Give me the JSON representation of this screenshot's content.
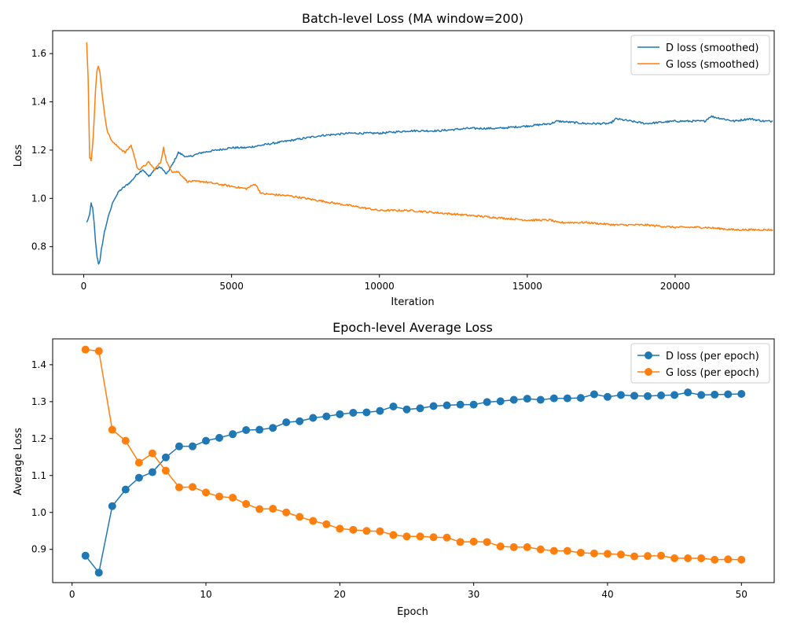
{
  "colors": {
    "d": "#1f77b4",
    "g": "#ff7f0e",
    "frame": "#000000",
    "legend_edge": "#cccccc"
  },
  "chart_data": [
    {
      "type": "line",
      "title": "Batch-level Loss (MA window=200)",
      "xlabel": "Iteration",
      "ylabel": "Loss",
      "xlim": [
        -1050,
        23350
      ],
      "ylim": [
        0.685,
        1.695
      ],
      "xticks": [
        0,
        5000,
        10000,
        15000,
        20000
      ],
      "xtick_labels": [
        "0",
        "5000",
        "10000",
        "15000",
        "20000"
      ],
      "yticks": [
        0.8,
        1.0,
        1.2,
        1.4,
        1.6
      ],
      "ytick_labels": [
        "0.8",
        "1.0",
        "1.2",
        "1.4",
        "1.6"
      ],
      "legend_position": "upper right",
      "grid": false,
      "series": [
        {
          "name": "D loss (smoothed)",
          "color_key": "d",
          "noise": 0.004,
          "x": [
            100,
            200,
            250,
            300,
            350,
            400,
            450,
            500,
            550,
            600,
            700,
            800,
            900,
            1000,
            1100,
            1200,
            1400,
            1600,
            1800,
            2000,
            2200,
            2400,
            2600,
            2800,
            3000,
            3200,
            3500,
            4000,
            4500,
            5000,
            5500,
            6000,
            7000,
            8000,
            9000,
            10000,
            11000,
            12000,
            13000,
            14000,
            15000,
            15800,
            16000,
            17000,
            17800,
            18000,
            19000,
            20000,
            21000,
            21200,
            22000,
            22500,
            23000,
            23300
          ],
          "y": [
            0.9,
            0.93,
            0.98,
            0.96,
            0.9,
            0.82,
            0.76,
            0.73,
            0.74,
            0.79,
            0.86,
            0.91,
            0.95,
            0.99,
            1.01,
            1.03,
            1.05,
            1.07,
            1.1,
            1.12,
            1.09,
            1.12,
            1.13,
            1.1,
            1.14,
            1.19,
            1.17,
            1.19,
            1.2,
            1.21,
            1.21,
            1.22,
            1.24,
            1.26,
            1.27,
            1.27,
            1.28,
            1.28,
            1.29,
            1.29,
            1.3,
            1.31,
            1.32,
            1.31,
            1.31,
            1.33,
            1.31,
            1.32,
            1.32,
            1.34,
            1.32,
            1.33,
            1.32,
            1.32
          ]
        },
        {
          "name": "G loss (smoothed)",
          "color_key": "g",
          "noise": 0.004,
          "x": [
            100,
            150,
            200,
            250,
            300,
            350,
            400,
            450,
            500,
            550,
            600,
            700,
            800,
            900,
            1000,
            1100,
            1200,
            1400,
            1600,
            1700,
            1800,
            1900,
            2000,
            2200,
            2400,
            2600,
            2700,
            2800,
            3000,
            3200,
            3500,
            4000,
            4500,
            5000,
            5500,
            5800,
            6000,
            7000,
            7500,
            8000,
            9000,
            10000,
            11000,
            12000,
            13000,
            14000,
            15000,
            15800,
            16000,
            17000,
            18000,
            19000,
            20000,
            21000,
            22000,
            22500,
            23300
          ],
          "y": [
            1.65,
            1.5,
            1.17,
            1.16,
            1.22,
            1.32,
            1.45,
            1.53,
            1.55,
            1.52,
            1.46,
            1.35,
            1.28,
            1.25,
            1.23,
            1.22,
            1.21,
            1.19,
            1.22,
            1.18,
            1.13,
            1.12,
            1.13,
            1.15,
            1.12,
            1.15,
            1.21,
            1.15,
            1.11,
            1.11,
            1.07,
            1.07,
            1.06,
            1.05,
            1.04,
            1.06,
            1.02,
            1.01,
            1.0,
            0.99,
            0.97,
            0.95,
            0.95,
            0.94,
            0.93,
            0.92,
            0.91,
            0.91,
            0.9,
            0.9,
            0.89,
            0.89,
            0.88,
            0.88,
            0.87,
            0.87,
            0.87
          ]
        }
      ]
    },
    {
      "type": "line",
      "title": "Epoch-level Average Loss",
      "xlabel": "Epoch",
      "ylabel": "Average Loss",
      "xlim": [
        -1.45,
        52.45
      ],
      "ylim": [
        0.81,
        1.47
      ],
      "xticks": [
        0,
        10,
        20,
        30,
        40,
        50
      ],
      "xtick_labels": [
        "0",
        "10",
        "20",
        "30",
        "40",
        "50"
      ],
      "yticks": [
        0.9,
        1.0,
        1.1,
        1.2,
        1.3,
        1.4
      ],
      "ytick_labels": [
        "0.9",
        "1.0",
        "1.1",
        "1.2",
        "1.3",
        "1.4"
      ],
      "legend_position": "upper right",
      "grid": false,
      "markers": true,
      "series": [
        {
          "name": "D loss (per epoch)",
          "color_key": "d",
          "x": [
            1,
            2,
            3,
            4,
            5,
            6,
            7,
            8,
            9,
            10,
            11,
            12,
            13,
            14,
            15,
            16,
            17,
            18,
            19,
            20,
            21,
            22,
            23,
            24,
            25,
            26,
            27,
            28,
            29,
            30,
            31,
            32,
            33,
            34,
            35,
            36,
            37,
            38,
            39,
            40,
            41,
            42,
            43,
            44,
            45,
            46,
            47,
            48,
            49,
            50
          ],
          "y": [
            0.883,
            0.837,
            1.017,
            1.062,
            1.094,
            1.109,
            1.149,
            1.179,
            1.179,
            1.194,
            1.202,
            1.212,
            1.223,
            1.224,
            1.229,
            1.244,
            1.247,
            1.256,
            1.26,
            1.266,
            1.27,
            1.271,
            1.275,
            1.287,
            1.279,
            1.282,
            1.288,
            1.29,
            1.292,
            1.292,
            1.299,
            1.301,
            1.305,
            1.308,
            1.305,
            1.309,
            1.309,
            1.31,
            1.32,
            1.313,
            1.318,
            1.316,
            1.315,
            1.317,
            1.318,
            1.325,
            1.318,
            1.319,
            1.32,
            1.321
          ]
        },
        {
          "name": "G loss (per epoch)",
          "color_key": "g",
          "x": [
            1,
            2,
            3,
            4,
            5,
            6,
            7,
            8,
            9,
            10,
            11,
            12,
            13,
            14,
            15,
            16,
            17,
            18,
            19,
            20,
            21,
            22,
            23,
            24,
            25,
            26,
            27,
            28,
            29,
            30,
            31,
            32,
            33,
            34,
            35,
            36,
            37,
            38,
            39,
            40,
            41,
            42,
            43,
            44,
            45,
            46,
            47,
            48,
            49,
            50
          ],
          "y": [
            1.441,
            1.437,
            1.224,
            1.194,
            1.135,
            1.16,
            1.113,
            1.068,
            1.069,
            1.054,
            1.043,
            1.04,
            1.023,
            1.009,
            1.01,
            1.0,
            0.988,
            0.977,
            0.968,
            0.956,
            0.953,
            0.95,
            0.949,
            0.939,
            0.935,
            0.935,
            0.933,
            0.932,
            0.92,
            0.921,
            0.92,
            0.908,
            0.906,
            0.906,
            0.9,
            0.896,
            0.896,
            0.891,
            0.889,
            0.888,
            0.886,
            0.881,
            0.882,
            0.883,
            0.876,
            0.876,
            0.876,
            0.872,
            0.873,
            0.872
          ]
        }
      ]
    }
  ]
}
